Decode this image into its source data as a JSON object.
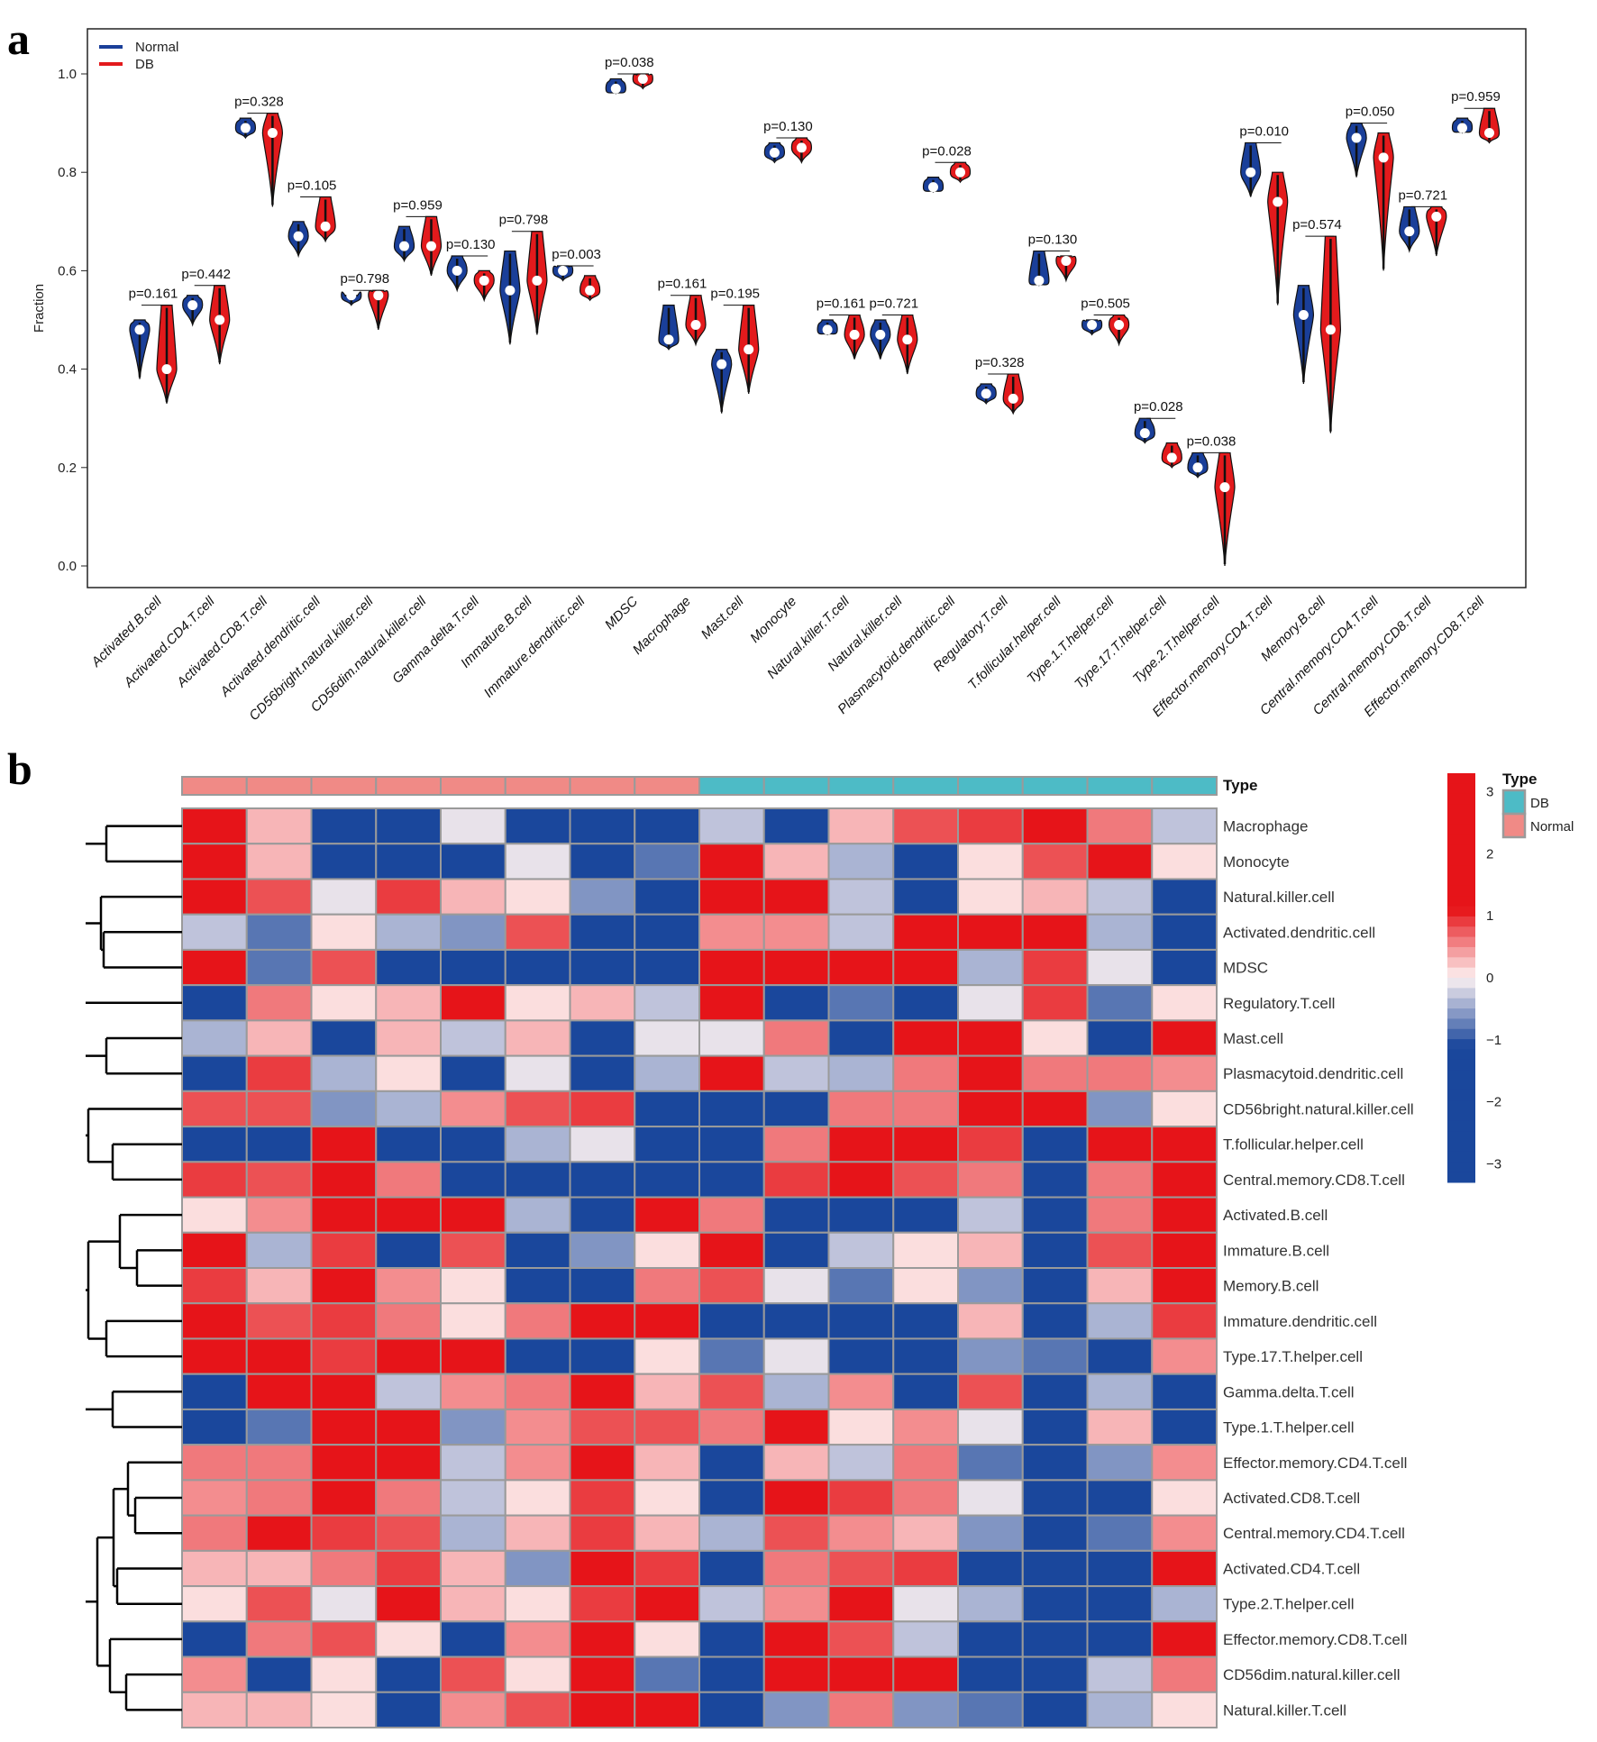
{
  "panel_a": {
    "label": "a",
    "legend": [
      {
        "name": "Normal",
        "color": "#1a3f99"
      },
      {
        "name": "DB",
        "color": "#e31a1c"
      }
    ]
  },
  "panel_b": {
    "label": "b"
  },
  "chart_data": [
    {
      "type": "violin",
      "title": "",
      "xlabel": "",
      "ylabel": "Fraction",
      "ylim": [
        -0.03,
        1.09
      ],
      "yticks": [
        "0.0",
        "0.2",
        "0.4",
        "0.6",
        "0.8",
        "1.0"
      ],
      "legend_position": "top-left",
      "grid": false,
      "series_names": [
        "Normal",
        "DB"
      ],
      "categories": [
        "Activated.B.cell",
        "Activated.CD4.T.cell",
        "Activated.CD8.T.cell",
        "Activated.dendritic.cell",
        "CD56bright.natural.killer.cell",
        "CD56dim.natural.killer.cell",
        "Gamma.delta.T.cell",
        "Immature.B.cell",
        "Immature.dendritic.cell",
        "MDSC",
        "Macrophage",
        "Mast.cell",
        "Monocyte",
        "Natural.killer.T.cell",
        "Natural.killer.cell",
        "Plasmacytoid.dendritic.cell",
        "Regulatory.T.cell",
        "T.follicular.helper.cell",
        "Type.1.T.helper.cell",
        "Type.17.T.helper.cell",
        "Type.2.T.helper.cell",
        "Effector.memory.CD4.T.cell",
        "Memory.B.cell",
        "Central.memory.CD4.T.cell",
        "Central.memory.CD8.T.cell",
        "Effector.memory.CD8.T.cell"
      ],
      "p_values": [
        "p=0.161",
        "p=0.442",
        "p=0.328",
        "p=0.105",
        "p=0.798",
        "p=0.959",
        "p=0.130",
        "p=0.798",
        "p=0.003",
        "p=0.038",
        "p=0.161",
        "p=0.195",
        "p=0.130",
        "p=0.161",
        "p=0.721",
        "p=0.028",
        "p=0.328",
        "p=0.130",
        "p=0.505",
        "p=0.028",
        "p=0.038",
        "p=0.010",
        "p=0.574",
        "p=0.050",
        "p=0.721",
        "p=0.959"
      ],
      "normal": {
        "min": [
          0.38,
          0.49,
          0.87,
          0.63,
          0.53,
          0.62,
          0.56,
          0.45,
          0.58,
          0.96,
          0.44,
          0.31,
          0.82,
          0.47,
          0.42,
          0.76,
          0.33,
          0.57,
          0.47,
          0.25,
          0.18,
          0.75,
          0.37,
          0.79,
          0.64,
          0.88
        ],
        "max": [
          0.5,
          0.55,
          0.91,
          0.7,
          0.55,
          0.69,
          0.63,
          0.64,
          0.61,
          0.99,
          0.53,
          0.44,
          0.86,
          0.5,
          0.5,
          0.79,
          0.37,
          0.64,
          0.5,
          0.3,
          0.23,
          0.86,
          0.57,
          0.9,
          0.73,
          0.91
        ],
        "median": [
          0.48,
          0.53,
          0.89,
          0.67,
          0.55,
          0.65,
          0.6,
          0.56,
          0.6,
          0.97,
          0.46,
          0.41,
          0.84,
          0.48,
          0.47,
          0.77,
          0.35,
          0.58,
          0.49,
          0.27,
          0.2,
          0.8,
          0.51,
          0.87,
          0.68,
          0.89
        ]
      },
      "db": {
        "min": [
          0.33,
          0.41,
          0.73,
          0.66,
          0.48,
          0.59,
          0.54,
          0.47,
          0.54,
          0.97,
          0.45,
          0.35,
          0.82,
          0.42,
          0.39,
          0.78,
          0.31,
          0.58,
          0.45,
          0.2,
          0.0,
          0.53,
          0.27,
          0.6,
          0.63,
          0.86
        ],
        "max": [
          0.53,
          0.57,
          0.92,
          0.75,
          0.56,
          0.71,
          0.6,
          0.68,
          0.59,
          1.0,
          0.55,
          0.53,
          0.87,
          0.51,
          0.51,
          0.82,
          0.39,
          0.63,
          0.51,
          0.25,
          0.23,
          0.8,
          0.67,
          0.88,
          0.73,
          0.93
        ],
        "median": [
          0.4,
          0.5,
          0.88,
          0.69,
          0.55,
          0.65,
          0.58,
          0.58,
          0.56,
          0.99,
          0.49,
          0.44,
          0.85,
          0.47,
          0.46,
          0.8,
          0.34,
          0.62,
          0.49,
          0.22,
          0.16,
          0.74,
          0.48,
          0.83,
          0.71,
          0.88
        ]
      }
    },
    {
      "type": "heatmap",
      "title": "",
      "annotation_title": "Type",
      "column_types": [
        "Normal",
        "Normal",
        "Normal",
        "Normal",
        "Normal",
        "Normal",
        "Normal",
        "Normal",
        "DB",
        "DB",
        "DB",
        "DB",
        "DB",
        "DB",
        "DB",
        "DB"
      ],
      "type_colors": {
        "DB": "#4dbbc6",
        "Normal": "#f08a86"
      },
      "type_legend": [
        "DB",
        "Normal"
      ],
      "colorbar_ticks": [
        "3",
        "2",
        "1",
        "0",
        "−1",
        "−2",
        "−3"
      ],
      "color_range": [
        -3.3,
        3.3
      ],
      "rows": [
        "Macrophage",
        "Monocyte",
        "Natural.killer.cell",
        "Activated.dendritic.cell",
        "MDSC",
        "Regulatory.T.cell",
        "Mast.cell",
        "Plasmacytoid.dendritic.cell",
        "CD56bright.natural.killer.cell",
        "T.follicular.helper.cell",
        "Central.memory.CD8.T.cell",
        "Activated.B.cell",
        "Immature.B.cell",
        "Memory.B.cell",
        "Immature.dendritic.cell",
        "Type.17.T.helper.cell",
        "Gamma.delta.T.cell",
        "Type.1.T.helper.cell",
        "Effector.memory.CD4.T.cell",
        "Activated.CD8.T.cell",
        "Central.memory.CD4.T.cell",
        "Activated.CD4.T.cell",
        "Type.2.T.helper.cell",
        "Effector.memory.CD8.T.cell",
        "CD56dim.natural.killer.cell",
        "Natural.killer.T.cell"
      ],
      "values": [
        [
          1.5,
          0.3,
          -1.1,
          -1.5,
          -0.1,
          -1.1,
          -1.5,
          -1.1,
          -0.3,
          -1.5,
          0.3,
          0.8,
          0.9,
          1.5,
          0.6,
          -0.3
        ],
        [
          1.5,
          0.3,
          -1.1,
          -1.5,
          -1.4,
          -0.1,
          -1.3,
          -0.8,
          1.5,
          0.3,
          -0.4,
          -1.5,
          0.1,
          0.8,
          1.5,
          0.1
        ],
        [
          1.5,
          0.8,
          -0.1,
          0.9,
          0.3,
          0.1,
          -0.6,
          -1.5,
          1.5,
          1.3,
          -0.3,
          -1.1,
          0.1,
          0.3,
          -0.3,
          -1.5
        ],
        [
          -0.3,
          -0.8,
          0.1,
          -0.4,
          -0.6,
          0.8,
          -1.3,
          -1.5,
          0.5,
          0.5,
          -0.3,
          1.5,
          1.5,
          1.5,
          -0.4,
          -1.3
        ],
        [
          1.5,
          -0.8,
          0.8,
          -1.5,
          -1.3,
          -1.1,
          -1.5,
          -1.5,
          1.3,
          1.5,
          1.5,
          1.5,
          -0.4,
          0.9,
          -0.1,
          -1.3
        ],
        [
          -1.5,
          0.6,
          0.1,
          0.3,
          1.5,
          0.1,
          0.3,
          -0.3,
          1.5,
          -1.5,
          -0.8,
          -1.5,
          -0.1,
          0.9,
          -0.8,
          0.1
        ],
        [
          -0.4,
          0.3,
          -1.5,
          0.3,
          -0.3,
          0.3,
          -1.5,
          -0.1,
          -0.1,
          0.6,
          -1.1,
          1.1,
          1.5,
          0.1,
          -1.5,
          1.5
        ],
        [
          -1.5,
          0.9,
          -0.4,
          0.1,
          -1.5,
          -0.1,
          -1.5,
          -0.4,
          1.5,
          -0.3,
          -0.4,
          0.6,
          1.5,
          0.6,
          0.6,
          0.5
        ],
        [
          0.8,
          0.8,
          -0.6,
          -0.4,
          0.5,
          0.8,
          0.9,
          -1.3,
          -1.5,
          -1.1,
          0.6,
          0.6,
          1.3,
          1.3,
          -0.6,
          0.1
        ],
        [
          -1.3,
          -1.1,
          1.5,
          -1.5,
          -1.5,
          -0.4,
          -0.1,
          -1.1,
          -1.5,
          0.6,
          1.3,
          1.5,
          0.9,
          -1.1,
          1.5,
          1.1
        ],
        [
          0.9,
          0.8,
          1.3,
          0.6,
          -1.5,
          -1.3,
          -1.5,
          -1.5,
          -1.5,
          0.9,
          1.5,
          0.8,
          0.6,
          -1.5,
          0.6,
          1.1
        ],
        [
          0.1,
          0.5,
          1.3,
          1.1,
          1.1,
          -0.4,
          -1.5,
          1.5,
          0.6,
          -1.5,
          -1.5,
          -1.5,
          -0.3,
          -1.5,
          0.6,
          1.5
        ],
        [
          1.5,
          -0.4,
          0.9,
          -1.1,
          0.8,
          -1.5,
          -0.6,
          0.1,
          1.3,
          -1.1,
          -0.3,
          0.1,
          0.3,
          -1.5,
          0.8,
          1.5
        ],
        [
          0.9,
          0.3,
          1.3,
          0.5,
          0.1,
          -1.5,
          -1.5,
          0.6,
          0.8,
          -0.1,
          -0.8,
          0.1,
          -0.6,
          -1.5,
          0.3,
          1.5
        ],
        [
          1.1,
          0.8,
          0.9,
          0.6,
          0.1,
          0.6,
          1.1,
          1.5,
          -1.5,
          -1.1,
          -1.5,
          -1.1,
          0.3,
          -1.5,
          -0.4,
          0.9
        ],
        [
          1.5,
          1.5,
          0.9,
          1.1,
          1.5,
          -1.1,
          -1.1,
          0.1,
          -0.8,
          -0.1,
          -1.1,
          -1.5,
          -0.6,
          -0.8,
          -1.5,
          0.5
        ],
        [
          -1.5,
          1.1,
          1.5,
          -0.3,
          0.5,
          0.6,
          1.5,
          0.3,
          0.8,
          -0.4,
          0.5,
          -1.3,
          0.8,
          -1.5,
          -0.4,
          -1.5
        ],
        [
          -1.5,
          -0.8,
          1.3,
          1.3,
          -0.6,
          0.5,
          0.8,
          0.8,
          0.6,
          1.5,
          0.1,
          0.5,
          -0.1,
          -1.5,
          0.3,
          -1.3
        ],
        [
          0.6,
          0.6,
          1.5,
          1.3,
          -0.3,
          0.5,
          1.1,
          0.3,
          -1.5,
          0.3,
          -0.3,
          0.6,
          -0.8,
          -1.5,
          -0.6,
          0.5
        ],
        [
          0.5,
          0.6,
          1.1,
          0.6,
          -0.3,
          0.1,
          0.9,
          0.1,
          -1.3,
          1.1,
          0.9,
          0.6,
          -0.1,
          -1.5,
          -1.1,
          0.1
        ],
        [
          0.6,
          1.1,
          0.9,
          0.8,
          -0.4,
          0.3,
          0.9,
          0.3,
          -0.4,
          0.8,
          0.5,
          0.3,
          -0.6,
          -1.5,
          -0.8,
          0.5
        ],
        [
          0.3,
          0.3,
          0.6,
          0.9,
          0.3,
          -0.6,
          1.1,
          0.9,
          -1.5,
          0.6,
          0.8,
          0.9,
          -1.5,
          -1.5,
          -1.5,
          1.5
        ],
        [
          0.1,
          0.8,
          -0.1,
          1.1,
          0.3,
          0.1,
          0.9,
          1.5,
          -0.3,
          0.5,
          1.3,
          -0.1,
          -0.4,
          -1.5,
          -1.5,
          -0.4
        ],
        [
          -1.5,
          0.6,
          0.8,
          0.1,
          -1.5,
          0.5,
          1.1,
          0.1,
          -1.1,
          1.5,
          0.8,
          -0.3,
          -1.3,
          -1.5,
          -1.3,
          1.5
        ],
        [
          0.5,
          -1.1,
          0.1,
          -1.3,
          0.8,
          0.1,
          1.5,
          -0.8,
          -1.5,
          1.3,
          1.5,
          1.5,
          -1.5,
          -1.5,
          -0.3,
          0.6
        ],
        [
          0.3,
          0.3,
          0.1,
          -1.1,
          0.5,
          0.8,
          1.5,
          1.1,
          -1.5,
          -0.6,
          0.6,
          -0.6,
          -0.8,
          -1.5,
          -0.4,
          0.1
        ]
      ]
    }
  ]
}
